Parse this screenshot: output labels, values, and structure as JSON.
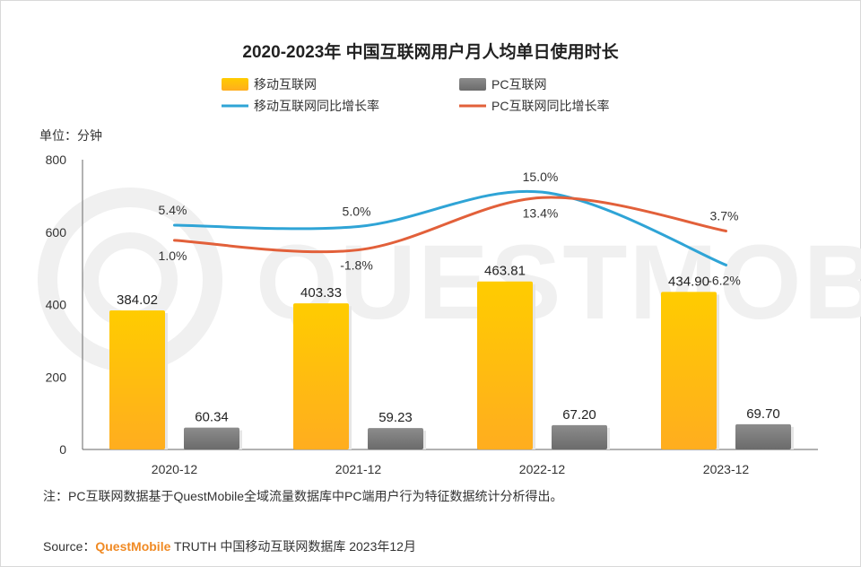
{
  "chart_data": {
    "type": "bar",
    "title": "2020-2023年 中国互联网用户月人均单日使用时长",
    "unit_label": "单位：分钟",
    "categories": [
      "2020-12",
      "2021-12",
      "2022-12",
      "2023-12"
    ],
    "ylim": [
      0,
      800
    ],
    "yticks": [
      "0",
      "200",
      "400",
      "600",
      "800"
    ],
    "grid": false,
    "legend": {
      "position": "top",
      "items": [
        "移动互联网",
        "PC互联网",
        "移动互联网同比增长率",
        "PC互联网同比增长率"
      ]
    },
    "series": [
      {
        "name": "移动互联网",
        "kind": "bar",
        "color": "#ffc000",
        "values": [
          384.02,
          403.33,
          463.81,
          434.9
        ],
        "labels": [
          "384.02",
          "403.33",
          "463.81",
          "434.90"
        ]
      },
      {
        "name": "PC互联网",
        "kind": "bar",
        "color": "#7f7f7f",
        "values": [
          60.34,
          59.23,
          67.2,
          69.7
        ],
        "labels": [
          "60.34",
          "59.23",
          "67.20",
          "69.70"
        ]
      },
      {
        "name": "移动互联网同比增长率",
        "kind": "line",
        "color": "#2fa4d6",
        "values": [
          5.4,
          5.0,
          15.0,
          -6.2
        ],
        "labels": [
          "5.4%",
          "5.0%",
          "15.0%",
          "-6.2%"
        ]
      },
      {
        "name": "PC互联网同比增长率",
        "kind": "line",
        "color": "#e2603a",
        "values": [
          1.0,
          -1.8,
          13.4,
          3.7
        ],
        "labels": [
          "1.0%",
          "-1.8%",
          "13.4%",
          "3.7%"
        ]
      }
    ]
  },
  "note": "注：PC互联网数据基于QuestMobile全域流量数据库中PC端用户行为特征数据统计分析得出。",
  "source": {
    "prefix": "Source：",
    "brand": "QuestMobile",
    "rest": " TRUTH 中国移动互联网数据库 2023年12月"
  },
  "watermark": "QUESTMOBILE"
}
